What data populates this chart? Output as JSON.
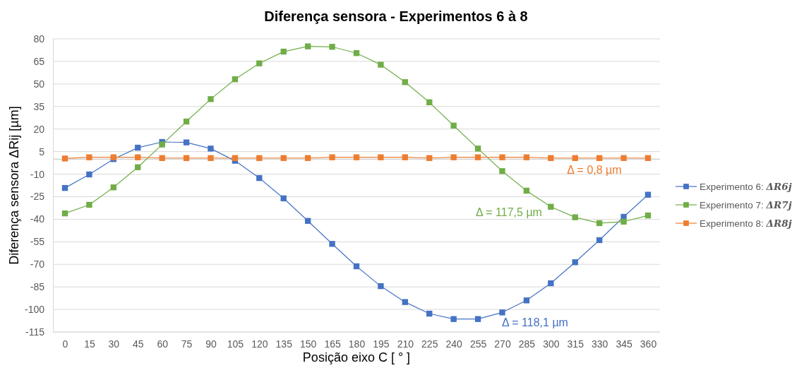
{
  "chart_data": {
    "type": "line",
    "title": "Diferença sensora - Experimentos 6 à 8",
    "xlabel": "Posição eixo C [ ° ]",
    "ylabel": "Diferença sensora ΔRij [µm]",
    "categories": [
      "0",
      "15",
      "30",
      "45",
      "60",
      "75",
      "90",
      "105",
      "120",
      "135",
      "150",
      "165",
      "180",
      "195",
      "210",
      "225",
      "240",
      "255",
      "270",
      "285",
      "300",
      "315",
      "330",
      "345",
      "360"
    ],
    "series": [
      {
        "name": "Experimento 6: ΔR6j",
        "color": "#4472c4",
        "values": [
          -19.2,
          -10.2,
          0,
          7.6,
          11.4,
          11.1,
          7.0,
          -1.1,
          -12.6,
          -26.1,
          -41.1,
          -56.4,
          -71.3,
          -84.5,
          -95.1,
          -102.8,
          -106.4,
          -106.4,
          -102,
          -94,
          -82.6,
          -68.6,
          -53.9,
          -38.4,
          -23.7
        ]
      },
      {
        "name": "Experimento 7: ΔR7j",
        "color": "#70ad47",
        "values": [
          -36.1,
          -30.4,
          -18.8,
          -5.4,
          9.7,
          25,
          39.9,
          53.1,
          63.7,
          71.5,
          75.0,
          74.7,
          70.5,
          62.8,
          51.2,
          37.8,
          22.3,
          7.0,
          -8.0,
          -21.0,
          -31.7,
          -38.7,
          -42.6,
          -41.6,
          -37.5
        ]
      },
      {
        "name": "Experimento 8: ΔR8j",
        "color": "#ed7d31",
        "values": [
          0.4,
          1.2,
          1.2,
          1.2,
          0.7,
          0.7,
          0.7,
          0.7,
          0.7,
          0.7,
          0.7,
          1.2,
          1.2,
          1.2,
          1.2,
          0.7,
          1.2,
          1.2,
          1.2,
          1.2,
          0.7,
          0.7,
          0.7,
          0.7,
          0.7
        ]
      }
    ],
    "ylim": [
      -115,
      80
    ],
    "yticks": [
      -115,
      -100,
      -85,
      -70,
      -55,
      -40,
      -25,
      -10,
      5,
      20,
      35,
      50,
      65,
      80
    ],
    "grid": "y",
    "legend": "right",
    "marker": "square",
    "line_style": "solid",
    "ref_lines": [
      {
        "axis": "y",
        "value": 0,
        "color": "#bfbfbf"
      }
    ],
    "annotations": [
      "Δ = 0,8 µm",
      "Δ = 117,5 µm",
      "Δ = 118,1 µm"
    ]
  }
}
